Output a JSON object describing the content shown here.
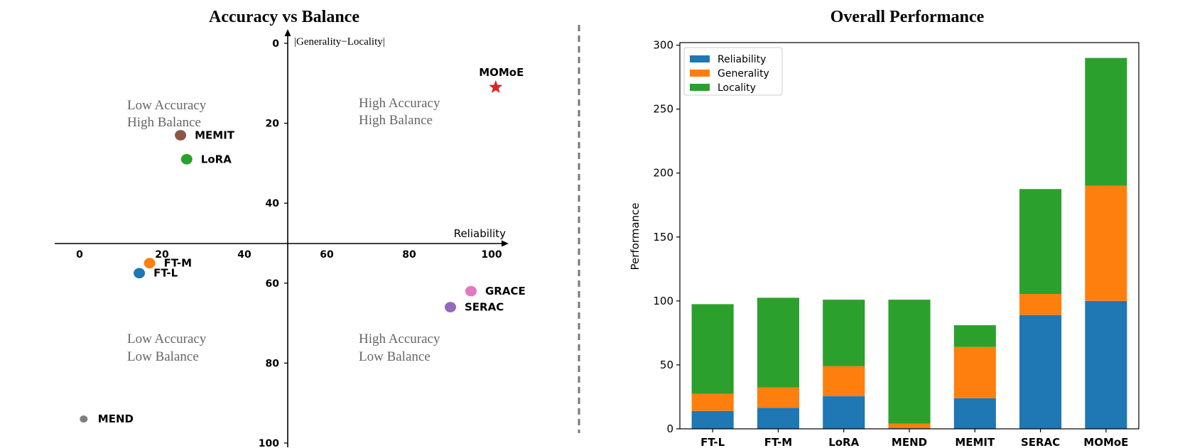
{
  "chart_data": [
    {
      "type": "scatter",
      "title": "Accuracy vs Balance",
      "xlabel": "Reliability",
      "ylabel": "|Generality−Locality|",
      "xlim": [
        -6,
        104
      ],
      "ylim": [
        100,
        0
      ],
      "x_ticks": [
        "0",
        "20",
        "40",
        "60",
        "80",
        "100"
      ],
      "y_ticks": [
        "0",
        "20",
        "40",
        "60",
        "80",
        "100"
      ],
      "quadrants": [
        {
          "label_line1": "Low Accuracy",
          "label_line2": "High Balance"
        },
        {
          "label_line1": "High Accuracy",
          "label_line2": "High Balance"
        },
        {
          "label_line1": "Low Accuracy",
          "label_line2": "Low Balance"
        },
        {
          "label_line1": "High Accuracy",
          "label_line2": "Low Balance"
        }
      ],
      "points": [
        {
          "name": "MOMoE",
          "x": 101,
          "y": 11,
          "color": "#d62728",
          "marker": "star"
        },
        {
          "name": "MEMIT",
          "x": 24.5,
          "y": 23,
          "color": "#8c564b",
          "marker": "circle"
        },
        {
          "name": "LoRA",
          "x": 26,
          "y": 29,
          "color": "#2ca02c",
          "marker": "circle"
        },
        {
          "name": "FT-M",
          "x": 17,
          "y": 55,
          "color": "#ff7f0e",
          "marker": "circle"
        },
        {
          "name": "FT-L",
          "x": 14.5,
          "y": 57.5,
          "color": "#1f77b4",
          "marker": "circle"
        },
        {
          "name": "GRACE",
          "x": 95,
          "y": 62,
          "color": "#e377c2",
          "marker": "circle"
        },
        {
          "name": "SERAC",
          "x": 90,
          "y": 66,
          "color": "#9467bd",
          "marker": "circle"
        },
        {
          "name": "MEND",
          "x": 1,
          "y": 94,
          "color": "#7f7f7f",
          "marker": "circle"
        }
      ]
    },
    {
      "type": "bar",
      "stacked": true,
      "title": "Overall Performance",
      "ylabel": "Performance",
      "ylim": [
        0,
        302
      ],
      "y_ticks": [
        "0",
        "50",
        "100",
        "150",
        "200",
        "250",
        "300"
      ],
      "categories": [
        "FT-L",
        "FT-M",
        "LoRA",
        "MEND",
        "MEMIT",
        "SERAC",
        "MOMoE"
      ],
      "legend_position": "top-left",
      "series": [
        {
          "name": "Reliability",
          "color": "#1f77b4",
          "values": [
            14,
            16.5,
            25.5,
            0.5,
            24,
            89,
            100
          ]
        },
        {
          "name": "Generality",
          "color": "#ff7f0e",
          "values": [
            13.5,
            16,
            23.5,
            3.5,
            40,
            16.5,
            90
          ]
        },
        {
          "name": "Locality",
          "color": "#2ca02c",
          "values": [
            70,
            70,
            52,
            97,
            17,
            82,
            100
          ]
        }
      ]
    }
  ]
}
